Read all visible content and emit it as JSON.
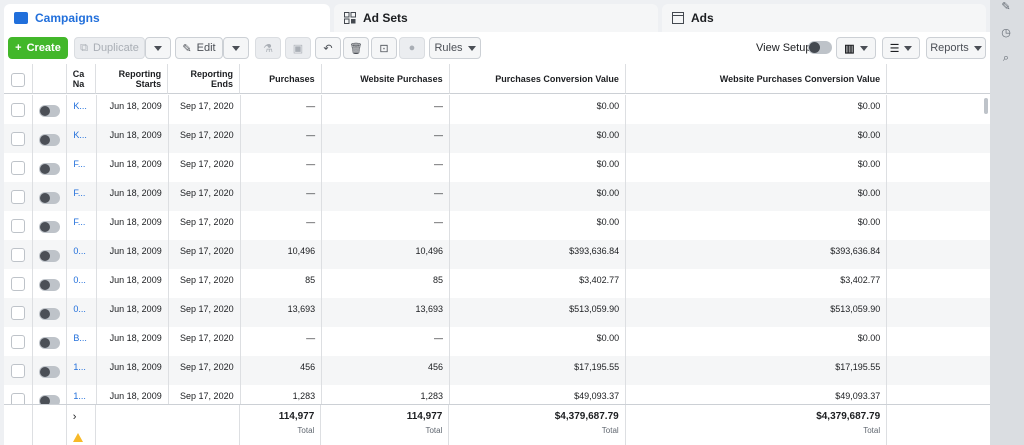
{
  "tabs": [
    {
      "label": "Campaigns",
      "icon": "folder-icon"
    },
    {
      "label": "Ad Sets",
      "icon": "grid-icon"
    },
    {
      "label": "Ads",
      "icon": "window-icon"
    }
  ],
  "toolbar": {
    "create": "Create",
    "duplicate": "Duplicate",
    "edit": "Edit",
    "rules": "Rules",
    "view_setup": "View Setup",
    "reports": "Reports"
  },
  "columns": {
    "name": "Ca Na",
    "reporting_starts": "Reporting Starts",
    "reporting_ends": "Reporting Ends",
    "purchases": "Purchases",
    "website_purchases": "Website Purchases",
    "purchases_conv_value": "Purchases Conversion Value",
    "website_purchases_conv_value": "Website Purchases Conversion Value"
  },
  "rows": [
    {
      "name": "K...",
      "start": "Jun 18, 2009",
      "end": "Sep 17, 2020",
      "purchases": "—",
      "web_purchases": "—",
      "conv_value": "$0.00",
      "web_conv_value": "$0.00"
    },
    {
      "name": "K...",
      "start": "Jun 18, 2009",
      "end": "Sep 17, 2020",
      "purchases": "—",
      "web_purchases": "—",
      "conv_value": "$0.00",
      "web_conv_value": "$0.00"
    },
    {
      "name": "F...",
      "start": "Jun 18, 2009",
      "end": "Sep 17, 2020",
      "purchases": "—",
      "web_purchases": "—",
      "conv_value": "$0.00",
      "web_conv_value": "$0.00"
    },
    {
      "name": "F...",
      "start": "Jun 18, 2009",
      "end": "Sep 17, 2020",
      "purchases": "—",
      "web_purchases": "—",
      "conv_value": "$0.00",
      "web_conv_value": "$0.00"
    },
    {
      "name": "F...",
      "start": "Jun 18, 2009",
      "end": "Sep 17, 2020",
      "purchases": "—",
      "web_purchases": "—",
      "conv_value": "$0.00",
      "web_conv_value": "$0.00"
    },
    {
      "name": "0...",
      "start": "Jun 18, 2009",
      "end": "Sep 17, 2020",
      "purchases": "10,496",
      "web_purchases": "10,496",
      "conv_value": "$393,636.84",
      "web_conv_value": "$393,636.84"
    },
    {
      "name": "0...",
      "start": "Jun 18, 2009",
      "end": "Sep 17, 2020",
      "purchases": "85",
      "web_purchases": "85",
      "conv_value": "$3,402.77",
      "web_conv_value": "$3,402.77"
    },
    {
      "name": "0...",
      "start": "Jun 18, 2009",
      "end": "Sep 17, 2020",
      "purchases": "13,693",
      "web_purchases": "13,693",
      "conv_value": "$513,059.90",
      "web_conv_value": "$513,059.90"
    },
    {
      "name": "B...",
      "start": "Jun 18, 2009",
      "end": "Sep 17, 2020",
      "purchases": "—",
      "web_purchases": "—",
      "conv_value": "$0.00",
      "web_conv_value": "$0.00"
    },
    {
      "name": "1...",
      "start": "Jun 18, 2009",
      "end": "Sep 17, 2020",
      "purchases": "456",
      "web_purchases": "456",
      "conv_value": "$17,195.55",
      "web_conv_value": "$17,195.55"
    },
    {
      "name": "1...",
      "start": "Jun 18, 2009",
      "end": "Sep 17, 2020",
      "purchases": "1,283",
      "web_purchases": "1,283",
      "conv_value": "$49,093.37",
      "web_conv_value": "$49,093.37"
    }
  ],
  "totals": {
    "purchases": "114,977",
    "web_purchases": "114,977",
    "conv_value": "$4,379,687.79",
    "web_conv_value": "$4,379,687.79",
    "label": "Total"
  },
  "colors": {
    "accent": "#216fdb",
    "create": "#42b72a"
  }
}
